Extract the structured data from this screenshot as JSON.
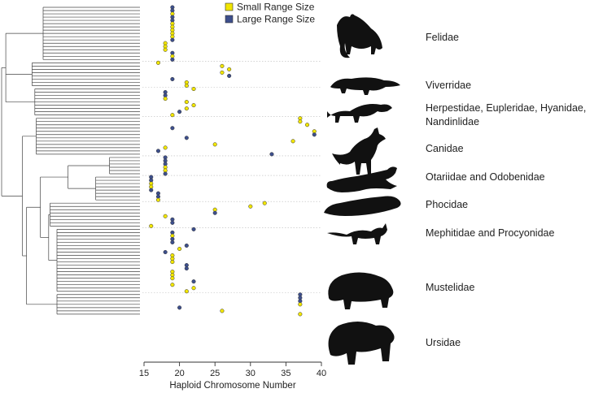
{
  "chart_data": {
    "type": "scatter",
    "title": "",
    "xlabel": "Haploid Chromosome Number",
    "ylabel": "",
    "xlim": [
      15,
      40
    ],
    "x_ticks": [
      15,
      20,
      25,
      30,
      35,
      40
    ],
    "tip_count": 95,
    "legend": {
      "placement": "top-center",
      "entries": [
        {
          "key": "small",
          "label": "Small Range Size",
          "color": "#f2e600"
        },
        {
          "key": "large",
          "label": "Large Range Size",
          "color": "#3d4f8c"
        }
      ]
    },
    "families": [
      {
        "name": "Felidae",
        "lines": [
          "Felidae"
        ],
        "silhouette": "cat"
      },
      {
        "name": "Viverridae",
        "lines": [
          "Viverridae"
        ],
        "silhouette": "civet"
      },
      {
        "name": "Herpestidae, Eupleridae, Hyanidae, Nandinlidae",
        "lines": [
          "Herpestidae, Eupleridae, Hyanidae,",
          "Nandinlidae"
        ],
        "silhouette": "mongoose"
      },
      {
        "name": "Canidae",
        "lines": [
          "Canidae"
        ],
        "silhouette": "fox"
      },
      {
        "name": "Otariidae and Odobenidae",
        "lines": [
          "Otariidae and Odobenidae"
        ],
        "silhouette": "sea-lion"
      },
      {
        "name": "Phocidae",
        "lines": [
          "Phocidae"
        ],
        "silhouette": "seal"
      },
      {
        "name": "Mephitidae and Procyonidae",
        "lines": [
          "Mephitidae and Procyonidae"
        ],
        "silhouette": "raccoon"
      },
      {
        "name": "Mustelidae",
        "lines": [
          "Mustelidae"
        ],
        "silhouette": "badger"
      },
      {
        "name": "Ursidae",
        "lines": [
          "Ursidae"
        ],
        "silhouette": "bear"
      }
    ],
    "points": [
      {
        "tip": 1,
        "x": 19,
        "range": "large",
        "family": "Felidae"
      },
      {
        "tip": 2,
        "x": 19,
        "range": "large",
        "family": "Felidae"
      },
      {
        "tip": 3,
        "x": 19,
        "range": "small",
        "family": "Felidae"
      },
      {
        "tip": 4,
        "x": 19,
        "range": "large",
        "family": "Felidae"
      },
      {
        "tip": 5,
        "x": 19,
        "range": "large",
        "family": "Felidae"
      },
      {
        "tip": 6,
        "x": 19,
        "range": "small",
        "family": "Felidae"
      },
      {
        "tip": 7,
        "x": 19,
        "range": "small",
        "family": "Felidae"
      },
      {
        "tip": 8,
        "x": 19,
        "range": "small",
        "family": "Felidae"
      },
      {
        "tip": 9,
        "x": 19,
        "range": "small",
        "family": "Felidae"
      },
      {
        "tip": 10,
        "x": 19,
        "range": "small",
        "family": "Felidae"
      },
      {
        "tip": 11,
        "x": 19,
        "range": "large",
        "family": "Felidae"
      },
      {
        "tip": 12,
        "x": 18,
        "range": "small",
        "family": "Felidae"
      },
      {
        "tip": 13,
        "x": 18,
        "range": "small",
        "family": "Felidae"
      },
      {
        "tip": 14,
        "x": 18,
        "range": "small",
        "family": "Felidae"
      },
      {
        "tip": 15,
        "x": 19,
        "range": "large",
        "family": "Felidae"
      },
      {
        "tip": 16,
        "x": 19,
        "range": "small",
        "family": "Felidae"
      },
      {
        "tip": 17,
        "x": 19,
        "range": "large",
        "family": "Felidae"
      },
      {
        "tip": 18,
        "x": 17,
        "range": "small",
        "family": "Viverridae"
      },
      {
        "tip": 19,
        "x": 26,
        "range": "small",
        "family": "Viverridae"
      },
      {
        "tip": 20,
        "x": 27,
        "range": "small",
        "family": "Viverridae"
      },
      {
        "tip": 21,
        "x": 26,
        "range": "small",
        "family": "Viverridae"
      },
      {
        "tip": 22,
        "x": 27,
        "range": "large",
        "family": "Viverridae"
      },
      {
        "tip": 23,
        "x": 19,
        "range": "large",
        "family": "Viverridae"
      },
      {
        "tip": 24,
        "x": 21,
        "range": "small",
        "family": "Viverridae"
      },
      {
        "tip": 25,
        "x": 21,
        "range": "small",
        "family": "Viverridae"
      },
      {
        "tip": 26,
        "x": 22,
        "range": "small",
        "family": "Herpestidae, Eupleridae, Hyanidae, Nandinlidae"
      },
      {
        "tip": 27,
        "x": 18,
        "range": "large",
        "family": "Herpestidae, Eupleridae, Hyanidae, Nandinlidae"
      },
      {
        "tip": 28,
        "x": 18,
        "range": "large",
        "family": "Herpestidae, Eupleridae, Hyanidae, Nandinlidae"
      },
      {
        "tip": 29,
        "x": 18,
        "range": "small",
        "family": "Herpestidae, Eupleridae, Hyanidae, Nandinlidae"
      },
      {
        "tip": 30,
        "x": 21,
        "range": "small",
        "family": "Herpestidae, Eupleridae, Hyanidae, Nandinlidae"
      },
      {
        "tip": 31,
        "x": 22,
        "range": "small",
        "family": "Herpestidae, Eupleridae, Hyanidae, Nandinlidae"
      },
      {
        "tip": 32,
        "x": 21,
        "range": "small",
        "family": "Herpestidae, Eupleridae, Hyanidae, Nandinlidae"
      },
      {
        "tip": 33,
        "x": 20,
        "range": "large",
        "family": "Herpestidae, Eupleridae, Hyanidae, Nandinlidae"
      },
      {
        "tip": 34,
        "x": 19,
        "range": "small",
        "family": "Herpestidae, Eupleridae, Hyanidae, Nandinlidae"
      },
      {
        "tip": 35,
        "x": 37,
        "range": "small",
        "family": "Canidae"
      },
      {
        "tip": 36,
        "x": 37,
        "range": "small",
        "family": "Canidae"
      },
      {
        "tip": 37,
        "x": 38,
        "range": "small",
        "family": "Canidae"
      },
      {
        "tip": 38,
        "x": 19,
        "range": "large",
        "family": "Canidae"
      },
      {
        "tip": 39,
        "x": 39,
        "range": "small",
        "family": "Canidae"
      },
      {
        "tip": 40,
        "x": 39,
        "range": "large",
        "family": "Canidae"
      },
      {
        "tip": 41,
        "x": 21,
        "range": "large",
        "family": "Canidae"
      },
      {
        "tip": 42,
        "x": 36,
        "range": "small",
        "family": "Canidae"
      },
      {
        "tip": 43,
        "x": 25,
        "range": "small",
        "family": "Canidae"
      },
      {
        "tip": 44,
        "x": 18,
        "range": "small",
        "family": "Canidae"
      },
      {
        "tip": 45,
        "x": 17,
        "range": "large",
        "family": "Canidae"
      },
      {
        "tip": 46,
        "x": 33,
        "range": "large",
        "family": "Canidae"
      },
      {
        "tip": 47,
        "x": 18,
        "range": "large",
        "family": "Otariidae and Odobenidae"
      },
      {
        "tip": 48,
        "x": 18,
        "range": "large",
        "family": "Otariidae and Odobenidae"
      },
      {
        "tip": 49,
        "x": 18,
        "range": "large",
        "family": "Otariidae and Odobenidae"
      },
      {
        "tip": 50,
        "x": 18,
        "range": "small",
        "family": "Otariidae and Odobenidae"
      },
      {
        "tip": 51,
        "x": 18,
        "range": "small",
        "family": "Otariidae and Odobenidae"
      },
      {
        "tip": 52,
        "x": 18,
        "range": "large",
        "family": "Otariidae and Odobenidae"
      },
      {
        "tip": 53,
        "x": 16,
        "range": "large",
        "family": "Phocidae"
      },
      {
        "tip": 54,
        "x": 16,
        "range": "large",
        "family": "Phocidae"
      },
      {
        "tip": 55,
        "x": 16,
        "range": "small",
        "family": "Phocidae"
      },
      {
        "tip": 56,
        "x": 16,
        "range": "small",
        "family": "Phocidae"
      },
      {
        "tip": 57,
        "x": 16,
        "range": "large",
        "family": "Phocidae"
      },
      {
        "tip": 58,
        "x": 17,
        "range": "large",
        "family": "Phocidae"
      },
      {
        "tip": 59,
        "x": 17,
        "range": "large",
        "family": "Phocidae"
      },
      {
        "tip": 60,
        "x": 17,
        "range": "small",
        "family": "Phocidae"
      },
      {
        "tip": 61,
        "x": 32,
        "range": "small",
        "family": "Mephitidae and Procyonidae"
      },
      {
        "tip": 62,
        "x": 30,
        "range": "small",
        "family": "Mephitidae and Procyonidae"
      },
      {
        "tip": 63,
        "x": 25,
        "range": "small",
        "family": "Mephitidae and Procyonidae"
      },
      {
        "tip": 64,
        "x": 25,
        "range": "large",
        "family": "Mephitidae and Procyonidae"
      },
      {
        "tip": 65,
        "x": 18,
        "range": "small",
        "family": "Mephitidae and Procyonidae"
      },
      {
        "tip": 66,
        "x": 19,
        "range": "large",
        "family": "Mephitidae and Procyonidae"
      },
      {
        "tip": 67,
        "x": 19,
        "range": "large",
        "family": "Mephitidae and Procyonidae"
      },
      {
        "tip": 68,
        "x": 16,
        "range": "small",
        "family": "Mephitidae and Procyonidae"
      },
      {
        "tip": 69,
        "x": 22,
        "range": "large",
        "family": "Mustelidae"
      },
      {
        "tip": 70,
        "x": 19,
        "range": "large",
        "family": "Mustelidae"
      },
      {
        "tip": 71,
        "x": 19,
        "range": "small",
        "family": "Mustelidae"
      },
      {
        "tip": 72,
        "x": 19,
        "range": "large",
        "family": "Mustelidae"
      },
      {
        "tip": 73,
        "x": 19,
        "range": "large",
        "family": "Mustelidae"
      },
      {
        "tip": 74,
        "x": 21,
        "range": "large",
        "family": "Mustelidae"
      },
      {
        "tip": 75,
        "x": 20,
        "range": "small",
        "family": "Mustelidae"
      },
      {
        "tip": 76,
        "x": 18,
        "range": "large",
        "family": "Mustelidae"
      },
      {
        "tip": 77,
        "x": 19,
        "range": "small",
        "family": "Mustelidae"
      },
      {
        "tip": 78,
        "x": 19,
        "range": "small",
        "family": "Mustelidae"
      },
      {
        "tip": 79,
        "x": 19,
        "range": "small",
        "family": "Mustelidae"
      },
      {
        "tip": 80,
        "x": 21,
        "range": "large",
        "family": "Mustelidae"
      },
      {
        "tip": 81,
        "x": 21,
        "range": "large",
        "family": "Mustelidae"
      },
      {
        "tip": 82,
        "x": 19,
        "range": "small",
        "family": "Mustelidae"
      },
      {
        "tip": 83,
        "x": 19,
        "range": "small",
        "family": "Mustelidae"
      },
      {
        "tip": 84,
        "x": 19,
        "range": "small",
        "family": "Mustelidae"
      },
      {
        "tip": 85,
        "x": 22,
        "range": "large",
        "family": "Mustelidae"
      },
      {
        "tip": 86,
        "x": 19,
        "range": "small",
        "family": "Mustelidae"
      },
      {
        "tip": 87,
        "x": 22,
        "range": "small",
        "family": "Mustelidae"
      },
      {
        "tip": 88,
        "x": 21,
        "range": "small",
        "family": "Mustelidae"
      },
      {
        "tip": 89,
        "x": 37,
        "range": "large",
        "family": "Ursidae"
      },
      {
        "tip": 90,
        "x": 37,
        "range": "large",
        "family": "Ursidae"
      },
      {
        "tip": 91,
        "x": 37,
        "range": "large",
        "family": "Ursidae"
      },
      {
        "tip": 92,
        "x": 37,
        "range": "small",
        "family": "Ursidae"
      },
      {
        "tip": 93,
        "x": 20,
        "range": "large",
        "family": "Ursidae"
      },
      {
        "tip": 94,
        "x": 26,
        "range": "small",
        "family": "Ursidae"
      },
      {
        "tip": 95,
        "x": 37,
        "range": "small",
        "family": "Ursidae"
      }
    ],
    "separators_after_tip": [
      17,
      25,
      34,
      46,
      52,
      60,
      68,
      88
    ],
    "tree_clades": [
      {
        "from": 1,
        "to": 17,
        "depth": 30
      },
      {
        "from": 18,
        "to": 25,
        "depth": 22
      },
      {
        "from": 26,
        "to": 34,
        "depth": 24
      },
      {
        "from": 1,
        "to": 34,
        "depth": 3
      },
      {
        "from": 35,
        "to": 46,
        "depth": 25
      },
      {
        "from": 47,
        "to": 52,
        "depth": 78
      },
      {
        "from": 53,
        "to": 60,
        "depth": 68
      },
      {
        "from": 47,
        "to": 60,
        "depth": 48
      },
      {
        "from": 61,
        "to": 68,
        "depth": 35
      },
      {
        "from": 69,
        "to": 88,
        "depth": 40
      },
      {
        "from": 61,
        "to": 88,
        "depth": 34
      },
      {
        "from": 47,
        "to": 88,
        "depth": 28
      },
      {
        "from": 89,
        "to": 95,
        "depth": 40
      },
      {
        "from": 47,
        "to": 95,
        "depth": 18
      },
      {
        "from": 35,
        "to": 95,
        "depth": 15
      },
      {
        "from": 1,
        "to": 95,
        "depth": 0
      }
    ]
  }
}
